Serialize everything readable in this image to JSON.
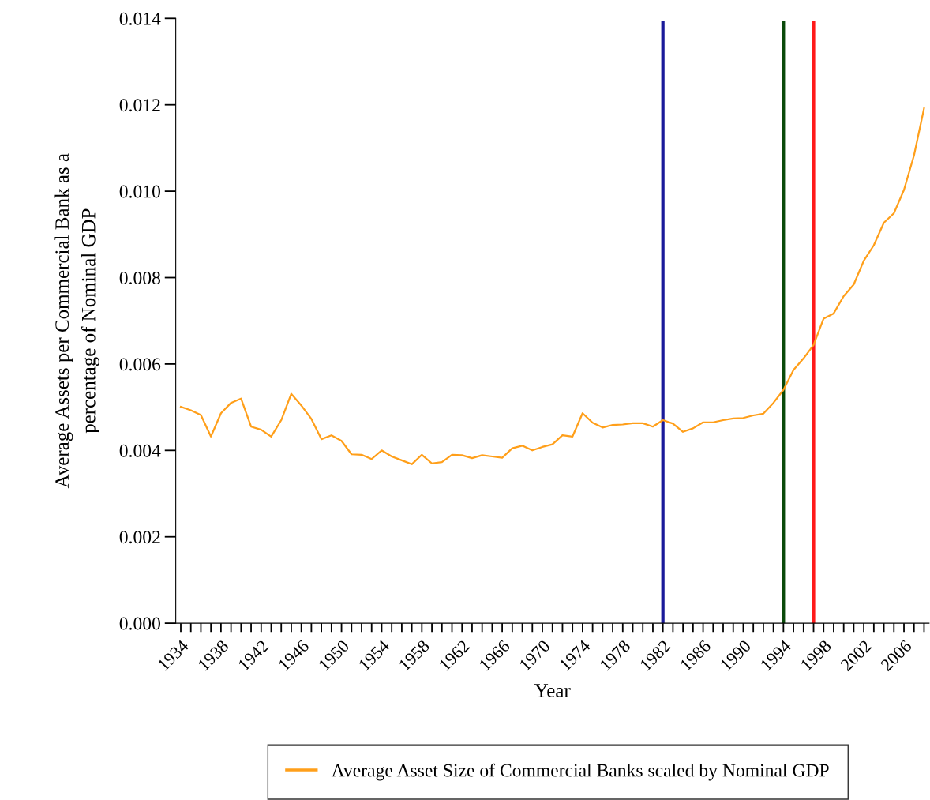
{
  "chart_data": {
    "type": "line",
    "xlabel": "Year",
    "ylabel": "Average Assets per Commercial Bank as a\npercentage of Nominal GDP",
    "x": [
      1934,
      1935,
      1936,
      1937,
      1938,
      1939,
      1940,
      1941,
      1942,
      1943,
      1944,
      1945,
      1946,
      1947,
      1948,
      1949,
      1950,
      1951,
      1952,
      1953,
      1954,
      1955,
      1956,
      1957,
      1958,
      1959,
      1960,
      1961,
      1962,
      1963,
      1964,
      1965,
      1966,
      1967,
      1968,
      1969,
      1970,
      1971,
      1972,
      1973,
      1974,
      1975,
      1976,
      1977,
      1978,
      1979,
      1980,
      1981,
      1982,
      1983,
      1984,
      1985,
      1986,
      1987,
      1988,
      1989,
      1990,
      1991,
      1992,
      1993,
      1994,
      1995,
      1996,
      1997,
      1998,
      1999,
      2000,
      2001,
      2002,
      2003,
      2004,
      2005,
      2006,
      2007,
      2008
    ],
    "series": [
      {
        "name": "Average Asset Size of Commercial Banks scaled by Nominal GDP",
        "color": "#ff9f1a",
        "values": [
          0.00501,
          0.00493,
          0.00482,
          0.00432,
          0.00486,
          0.0051,
          0.0052,
          0.00455,
          0.00448,
          0.00432,
          0.0047,
          0.00531,
          0.00504,
          0.00473,
          0.00426,
          0.00435,
          0.00422,
          0.00391,
          0.0039,
          0.0038,
          0.004,
          0.00386,
          0.00377,
          0.00368,
          0.0039,
          0.0037,
          0.00373,
          0.0039,
          0.00389,
          0.00382,
          0.00389,
          0.00386,
          0.00383,
          0.00405,
          0.00411,
          0.004,
          0.00408,
          0.00414,
          0.00435,
          0.00432,
          0.00486,
          0.00464,
          0.00453,
          0.00459,
          0.0046,
          0.00463,
          0.00463,
          0.00455,
          0.0047,
          0.00462,
          0.00443,
          0.00451,
          0.00465,
          0.00465,
          0.0047,
          0.00474,
          0.00475,
          0.00481,
          0.00485,
          0.0051,
          0.0054,
          0.00586,
          0.00613,
          0.00644,
          0.00705,
          0.00717,
          0.00757,
          0.00784,
          0.00839,
          0.00875,
          0.00927,
          0.00949,
          0.01003,
          0.01083,
          0.01192
        ]
      }
    ],
    "xlim": [
      1933.5,
      2008.5
    ],
    "xticks": [
      1934,
      {
        "value": 1935,
        "label": null
      },
      {
        "value": 1936,
        "label": null
      },
      {
        "value": 1937,
        "label": null
      },
      1938,
      {
        "value": 1939,
        "label": null
      },
      {
        "value": 1940,
        "label": null
      },
      {
        "value": 1941,
        "label": null
      },
      1942,
      {
        "value": 1943,
        "label": null
      },
      {
        "value": 1944,
        "label": null
      },
      {
        "value": 1945,
        "label": null
      },
      1946,
      {
        "value": 1947,
        "label": null
      },
      {
        "value": 1948,
        "label": null
      },
      {
        "value": 1949,
        "label": null
      },
      1950,
      {
        "value": 1951,
        "label": null
      },
      {
        "value": 1952,
        "label": null
      },
      {
        "value": 1953,
        "label": null
      },
      1954,
      {
        "value": 1955,
        "label": null
      },
      {
        "value": 1956,
        "label": null
      },
      {
        "value": 1957,
        "label": null
      },
      1958,
      {
        "value": 1959,
        "label": null
      },
      {
        "value": 1960,
        "label": null
      },
      {
        "value": 1961,
        "label": null
      },
      1962,
      {
        "value": 1963,
        "label": null
      },
      {
        "value": 1964,
        "label": null
      },
      {
        "value": 1965,
        "label": null
      },
      1966,
      {
        "value": 1967,
        "label": null
      },
      {
        "value": 1968,
        "label": null
      },
      {
        "value": 1969,
        "label": null
      },
      1970,
      {
        "value": 1971,
        "label": null
      },
      {
        "value": 1972,
        "label": null
      },
      {
        "value": 1973,
        "label": null
      },
      1974,
      {
        "value": 1975,
        "label": null
      },
      {
        "value": 1976,
        "label": null
      },
      {
        "value": 1977,
        "label": null
      },
      1978,
      {
        "value": 1979,
        "label": null
      },
      {
        "value": 1980,
        "label": null
      },
      {
        "value": 1981,
        "label": null
      },
      1982,
      {
        "value": 1983,
        "label": null
      },
      {
        "value": 1984,
        "label": null
      },
      {
        "value": 1985,
        "label": null
      },
      1986,
      {
        "value": 1987,
        "label": null
      },
      {
        "value": 1988,
        "label": null
      },
      {
        "value": 1989,
        "label": null
      },
      1990,
      {
        "value": 1991,
        "label": null
      },
      {
        "value": 1992,
        "label": null
      },
      {
        "value": 1993,
        "label": null
      },
      1994,
      {
        "value": 1995,
        "label": null
      },
      {
        "value": 1996,
        "label": null
      },
      {
        "value": 1997,
        "label": null
      },
      1998,
      {
        "value": 1999,
        "label": null
      },
      {
        "value": 2000,
        "label": null
      },
      {
        "value": 2001,
        "label": null
      },
      2002,
      {
        "value": 2003,
        "label": null
      },
      {
        "value": 2004,
        "label": null
      },
      {
        "value": 2005,
        "label": null
      },
      2006,
      {
        "value": 2007,
        "label": null
      },
      {
        "value": 2008,
        "label": null
      }
    ],
    "ylim": [
      0,
      0.014
    ],
    "yticks": [
      {
        "value": 0,
        "label": "0.000"
      },
      {
        "value": 0.002,
        "label": "0.002"
      },
      {
        "value": 0.004,
        "label": "0.004"
      },
      {
        "value": 0.006,
        "label": "0.006"
      },
      {
        "value": 0.008,
        "label": "0.008"
      },
      {
        "value": 0.01,
        "label": "0.010"
      },
      {
        "value": 0.012,
        "label": "0.012"
      },
      {
        "value": 0.014,
        "label": "0.014"
      }
    ],
    "ref_lines": [
      {
        "axis": "x",
        "value": 1982,
        "color": "#1a1a9a"
      },
      {
        "axis": "x",
        "value": 1994,
        "color": "#0a4a0a"
      },
      {
        "axis": "x",
        "value": 1997,
        "color": "#ff1a1a"
      }
    ],
    "grid": false,
    "legend": "bottom",
    "marker": "none",
    "line_style": "solid"
  }
}
